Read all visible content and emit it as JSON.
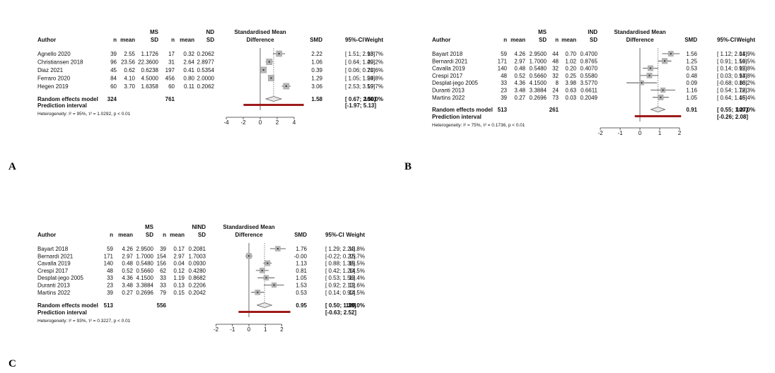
{
  "panels": [
    {
      "label": "A",
      "headers": {
        "author": "Author",
        "n1": "n",
        "mean1": "mean",
        "sd1": "MS\nSD",
        "n2": "n",
        "mean2": "mean",
        "sd2": "ND\nSD",
        "plot": "Standardised Mean\nDifference",
        "smd": "SMD",
        "ci": "95%-CI",
        "weight": "Weight"
      },
      "studies": [
        {
          "author": "Agnello 2020",
          "n1": "39",
          "mean1": "2.55",
          "sd1": "1.1726",
          "n2": "17",
          "mean2": "0.32",
          "sd2": "0.2062",
          "smd": 2.22,
          "lo": 1.51,
          "hi": 2.93,
          "smd_text": "2.22",
          "ci_text": "[ 1.51; 2.93]",
          "weight": "18.7%"
        },
        {
          "author": "Christiansen 2018",
          "n1": "96",
          "mean1": "23.56",
          "sd1": "22.3600",
          "n2": "31",
          "mean2": "2.64",
          "sd2": "2.8977",
          "smd": 1.06,
          "lo": 0.64,
          "hi": 1.49,
          "smd_text": "1.06",
          "ci_text": "[ 0.64; 1.49]",
          "weight": "20.2%"
        },
        {
          "author": "Diaz 2021",
          "n1": "45",
          "mean1": "0.62",
          "sd1": "0.6238",
          "n2": "197",
          "mean2": "0.41",
          "sd2": "0.5354",
          "smd": 0.39,
          "lo": 0.06,
          "hi": 0.71,
          "smd_text": "0.39",
          "ci_text": "[ 0.06; 0.71]",
          "weight": "20.6%"
        },
        {
          "author": "Ferraro 2020",
          "n1": "84",
          "mean1": "4.10",
          "sd1": "4.5000",
          "n2": "456",
          "mean2": "0.80",
          "sd2": "2.0000",
          "smd": 1.29,
          "lo": 1.05,
          "hi": 1.54,
          "smd_text": "1.29",
          "ci_text": "[ 1.05; 1.54]",
          "weight": "20.8%"
        },
        {
          "author": "Hegen 2019",
          "n1": "60",
          "mean1": "3.70",
          "sd1": "1.6358",
          "n2": "60",
          "mean2": "0.11",
          "sd2": "0.2062",
          "smd": 3.06,
          "lo": 2.53,
          "hi": 3.59,
          "smd_text": "3.06",
          "ci_text": "[ 2.53; 3.59]",
          "weight": "19.7%"
        }
      ],
      "random": {
        "label": "Random effects model",
        "n1": "324",
        "n2": "761",
        "smd": 1.58,
        "lo": 0.67,
        "hi": 2.5,
        "smd_text": "1.58",
        "ci_text": "[ 0.67; 2.50]",
        "weight": "100.0%"
      },
      "prediction": {
        "label": "Prediction interval",
        "lo": -1.97,
        "hi": 5.13,
        "ci_text": "[-1.97; 5.13]"
      },
      "heterogeneity": "Heterogeneity: I² = 95%, τ² = 1.0292, p < 0.01",
      "axis": {
        "min": -4,
        "max": 4,
        "ticks": [
          -4,
          -2,
          0,
          2,
          4
        ]
      }
    },
    {
      "label": "B",
      "headers": {
        "author": "Author",
        "n1": "n",
        "mean1": "mean",
        "sd1": "MS\nSD",
        "n2": "n",
        "mean2": "mean",
        "sd2": "IND\nSD",
        "plot": "Standardised Mean\nDifference",
        "smd": "SMD",
        "ci": "95%-CI",
        "weight": "Weight"
      },
      "studies": [
        {
          "author": "Bayart 2018",
          "n1": "59",
          "mean1": "4.26",
          "sd1": "2.9500",
          "n2": "44",
          "mean2": "0.70",
          "sd2": "0.4700",
          "smd": 1.56,
          "lo": 1.12,
          "hi": 2.01,
          "smd_text": "1.56",
          "ci_text": "[ 1.12; 2.01]",
          "weight": "14.9%"
        },
        {
          "author": "Bernardi 2021",
          "n1": "171",
          "mean1": "2.97",
          "sd1": "1.7000",
          "n2": "48",
          "mean2": "1.02",
          "sd2": "0.8765",
          "smd": 1.25,
          "lo": 0.91,
          "hi": 1.59,
          "smd_text": "1.25",
          "ci_text": "[ 0.91; 1.59]",
          "weight": "16.5%"
        },
        {
          "author": "Cavalla 2019",
          "n1": "140",
          "mean1": "0.48",
          "sd1": "0.5480",
          "n2": "32",
          "mean2": "0.20",
          "sd2": "0.4070",
          "smd": 0.53,
          "lo": 0.14,
          "hi": 0.92,
          "smd_text": "0.53",
          "ci_text": "[ 0.14; 0.92]",
          "weight": "15.8%"
        },
        {
          "author": "Crespi 2017",
          "n1": "48",
          "mean1": "0.52",
          "sd1": "0.5660",
          "n2": "32",
          "mean2": "0.25",
          "sd2": "0.5580",
          "smd": 0.48,
          "lo": 0.03,
          "hi": 0.93,
          "smd_text": "0.48",
          "ci_text": "[ 0.03; 0.93]",
          "weight": "14.8%"
        },
        {
          "author": "Desplat-jego 2005",
          "n1": "33",
          "mean1": "4.36",
          "sd1": "4.1500",
          "n2": "8",
          "mean2": "3.98",
          "sd2": "3.5770",
          "smd": 0.09,
          "lo": -0.68,
          "hi": 0.86,
          "smd_text": "0.09",
          "ci_text": "[-0.68; 0.86]",
          "weight": "10.2%"
        },
        {
          "author": "Duranti 2013",
          "n1": "23",
          "mean1": "3.48",
          "sd1": "3.3884",
          "n2": "24",
          "mean2": "0.63",
          "sd2": "0.6611",
          "smd": 1.16,
          "lo": 0.54,
          "hi": 1.78,
          "smd_text": "1.16",
          "ci_text": "[ 0.54; 1.78]",
          "weight": "12.3%"
        },
        {
          "author": "Martins 2022",
          "n1": "39",
          "mean1": "0.27",
          "sd1": "0.2696",
          "n2": "73",
          "mean2": "0.03",
          "sd2": "0.2049",
          "smd": 1.05,
          "lo": 0.64,
          "hi": 1.46,
          "smd_text": "1.05",
          "ci_text": "[ 0.64; 1.46]",
          "weight": "15.4%"
        }
      ],
      "random": {
        "label": "Random effects model",
        "n1": "513",
        "n2": "261",
        "smd": 0.91,
        "lo": 0.55,
        "hi": 1.27,
        "smd_text": "0.91",
        "ci_text": "[ 0.55; 1.27]",
        "weight": "100.0%"
      },
      "prediction": {
        "label": "Prediction interval",
        "lo": -0.26,
        "hi": 2.08,
        "ci_text": "[-0.26; 2.08]"
      },
      "heterogeneity": "Heterogeneity: I² = 75%, τ² = 0.1736, p < 0.01",
      "axis": {
        "min": -2,
        "max": 2,
        "ticks": [
          -2,
          -1,
          0,
          1,
          2
        ]
      }
    },
    {
      "label": "C",
      "headers": {
        "author": "Author",
        "n1": "n",
        "mean1": "mean",
        "sd1": "MS\nSD",
        "n2": "n",
        "mean2": "mean",
        "sd2": "NIND\nSD",
        "plot": "Standardised Mean\nDifference",
        "smd": "SMD",
        "ci": "95%-CI",
        "weight": "Weight"
      },
      "studies": [
        {
          "author": "Bayart 2018",
          "n1": "59",
          "mean1": "4.26",
          "sd1": "2.9500",
          "n2": "39",
          "mean2": "0.17",
          "sd2": "0.2081",
          "smd": 1.76,
          "lo": 1.29,
          "hi": 2.24,
          "smd_text": "1.76",
          "ci_text": "[ 1.29; 2.24]",
          "weight": "13.8%"
        },
        {
          "author": "Bernardi 2021",
          "n1": "171",
          "mean1": "2.97",
          "sd1": "1.7000",
          "n2": "154",
          "mean2": "2.97",
          "sd2": "1.7003",
          "smd": 0.0,
          "lo": -0.22,
          "hi": 0.22,
          "smd_text": "-0.00",
          "ci_text": "[-0.22; 0.22]",
          "weight": "15.7%"
        },
        {
          "author": "Cavalla 2019",
          "n1": "140",
          "mean1": "0.48",
          "sd1": "0.5480",
          "n2": "156",
          "mean2": "0.04",
          "sd2": "0.0930",
          "smd": 1.13,
          "lo": 0.88,
          "hi": 1.38,
          "smd_text": "1.13",
          "ci_text": "[ 0.88; 1.38]",
          "weight": "15.5%"
        },
        {
          "author": "Crespi 2017",
          "n1": "48",
          "mean1": "0.52",
          "sd1": "0.5660",
          "n2": "62",
          "mean2": "0.12",
          "sd2": "0.4280",
          "smd": 0.81,
          "lo": 0.42,
          "hi": 1.2,
          "smd_text": "0.81",
          "ci_text": "[ 0.42; 1.20]",
          "weight": "14.5%"
        },
        {
          "author": "Desplat-jego 2005",
          "n1": "33",
          "mean1": "4.36",
          "sd1": "4.1500",
          "n2": "33",
          "mean2": "1.19",
          "sd2": "0.8682",
          "smd": 1.05,
          "lo": 0.53,
          "hi": 1.56,
          "smd_text": "1.05",
          "ci_text": "[ 0.53; 1.56]",
          "weight": "13.4%"
        },
        {
          "author": "Duranti 2013",
          "n1": "23",
          "mean1": "3.48",
          "sd1": "3.3884",
          "n2": "33",
          "mean2": "0.13",
          "sd2": "0.2206",
          "smd": 1.53,
          "lo": 0.92,
          "hi": 2.13,
          "smd_text": "1.53",
          "ci_text": "[ 0.92; 2.13]",
          "weight": "12.6%"
        },
        {
          "author": "Martins 2022",
          "n1": "39",
          "mean1": "0.27",
          "sd1": "0.2696",
          "n2": "79",
          "mean2": "0.15",
          "sd2": "0.2042",
          "smd": 0.53,
          "lo": 0.14,
          "hi": 0.92,
          "smd_text": "0.53",
          "ci_text": "[ 0.14; 0.92]",
          "weight": "14.5%"
        }
      ],
      "random": {
        "label": "Random effects model",
        "n1": "513",
        "n2": "556",
        "smd": 0.95,
        "lo": 0.5,
        "hi": 1.39,
        "smd_text": "0.95",
        "ci_text": "[ 0.50; 1.39]",
        "weight": "100.0%"
      },
      "prediction": {
        "label": "Prediction interval",
        "lo": -0.63,
        "hi": 2.52,
        "ci_text": "[-0.63; 2.52]"
      },
      "heterogeneity": "Heterogeneity: I² = 93%, τ² = 0.3227, p < 0.01",
      "axis": {
        "min": -2,
        "max": 2,
        "ticks": [
          -2,
          -1,
          0,
          1,
          2
        ]
      }
    }
  ],
  "chart_data": [
    {
      "type": "forest",
      "title": "A",
      "comparison": "MS vs ND",
      "xlabel": "Standardised Mean Difference",
      "xlim": [
        -4,
        4
      ],
      "studies": [
        "Agnello 2020",
        "Christiansen 2018",
        "Diaz 2021",
        "Ferraro 2020",
        "Hegen 2019"
      ],
      "smd": [
        2.22,
        1.06,
        0.39,
        1.29,
        3.06
      ],
      "ci_lower": [
        1.51,
        0.64,
        0.06,
        1.05,
        2.53
      ],
      "ci_upper": [
        2.93,
        1.49,
        0.71,
        1.54,
        3.59
      ],
      "weights": [
        18.7,
        20.2,
        20.6,
        20.8,
        19.7
      ],
      "pooled": {
        "smd": 1.58,
        "ci": [
          0.67,
          2.5
        ],
        "prediction": [
          -1.97,
          5.13
        ]
      }
    },
    {
      "type": "forest",
      "title": "B",
      "comparison": "MS vs IND",
      "xlabel": "Standardised Mean Difference",
      "xlim": [
        -2,
        2
      ],
      "studies": [
        "Bayart 2018",
        "Bernardi 2021",
        "Cavalla 2019",
        "Crespi 2017",
        "Desplat-jego 2005",
        "Duranti 2013",
        "Martins 2022"
      ],
      "smd": [
        1.56,
        1.25,
        0.53,
        0.48,
        0.09,
        1.16,
        1.05
      ],
      "ci_lower": [
        1.12,
        0.91,
        0.14,
        0.03,
        -0.68,
        0.54,
        0.64
      ],
      "ci_upper": [
        2.01,
        1.59,
        0.92,
        0.93,
        0.86,
        1.78,
        1.46
      ],
      "weights": [
        14.9,
        16.5,
        15.8,
        14.8,
        10.2,
        12.3,
        15.4
      ],
      "pooled": {
        "smd": 0.91,
        "ci": [
          0.55,
          1.27
        ],
        "prediction": [
          -0.26,
          2.08
        ]
      }
    },
    {
      "type": "forest",
      "title": "C",
      "comparison": "MS vs NIND",
      "xlabel": "Standardised Mean Difference",
      "xlim": [
        -2,
        2
      ],
      "studies": [
        "Bayart 2018",
        "Bernardi 2021",
        "Cavalla 2019",
        "Crespi 2017",
        "Desplat-jego 2005",
        "Duranti 2013",
        "Martins 2022"
      ],
      "smd": [
        1.76,
        0.0,
        1.13,
        0.81,
        1.05,
        1.53,
        0.53
      ],
      "ci_lower": [
        1.29,
        -0.22,
        0.88,
        0.42,
        0.53,
        0.92,
        0.14
      ],
      "ci_upper": [
        2.24,
        0.22,
        1.38,
        1.2,
        1.56,
        2.13,
        0.92
      ],
      "weights": [
        13.8,
        15.7,
        15.5,
        14.5,
        13.4,
        12.6,
        14.5
      ],
      "pooled": {
        "smd": 0.95,
        "ci": [
          0.5,
          1.39
        ],
        "prediction": [
          -0.63,
          2.52
        ]
      }
    }
  ]
}
